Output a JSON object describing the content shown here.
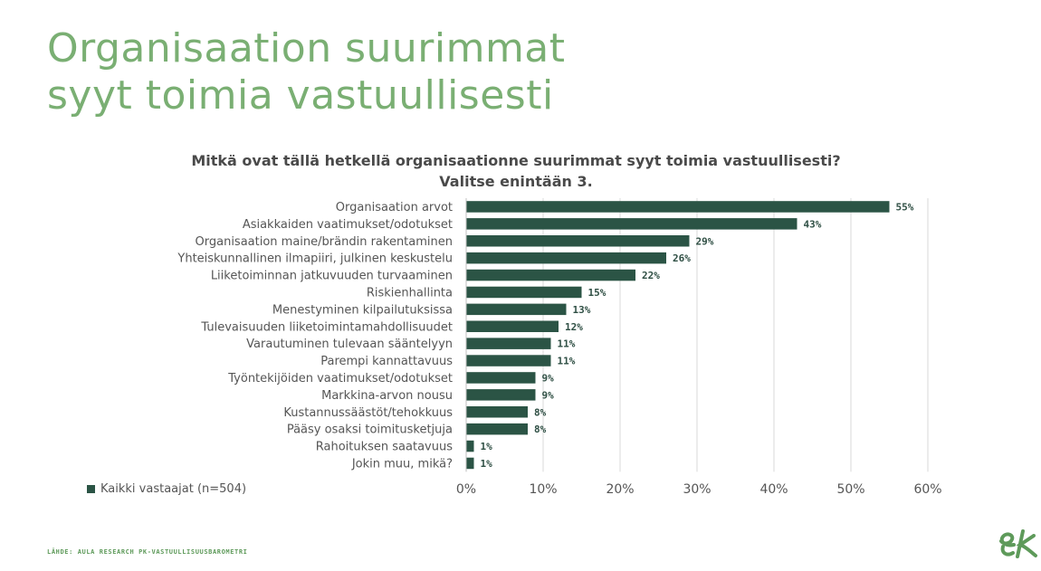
{
  "title_lines": [
    "Organisaation suurimmat",
    "syyt toimia vastuullisesti"
  ],
  "subtitle_lines": [
    "Mitkä ovat tällä hetkellä organisaationne suurimmat syyt toimia vastuullisesti?",
    "Valitse enintään 3."
  ],
  "legend_label": "Kaikki vastaajat (n=504)",
  "source": "LÄHDE: AULA RESEARCH PK-VASTUULLISUUSBAROMETRI",
  "logo_text": "ek",
  "colors": {
    "title": "#7aaf73",
    "bar": "#2b5445",
    "label": "#2f4f44",
    "grid": "#d9d9d9",
    "logo": "#5e9a5a"
  },
  "chart_data": {
    "type": "bar",
    "orientation": "horizontal",
    "categories": [
      "Organisaation arvot",
      "Asiakkaiden vaatimukset/odotukset",
      "Organisaation maine/brändin rakentaminen",
      "Yhteiskunnallinen ilmapiiri, julkinen keskustelu",
      "Liiketoiminnan jatkuvuuden turvaaminen",
      "Riskienhallinta",
      "Menestyminen kilpailutuksissa",
      "Tulevaisuuden liiketoimintamahdollisuudet",
      "Varautuminen tulevaan sääntelyyn",
      "Parempi kannattavuus",
      "Työntekijöiden vaatimukset/odotukset",
      "Markkina-arvon nousu",
      "Kustannussäästöt/tehokkuus",
      "Pääsy osaksi toimitusketjuja",
      "Rahoituksen saatavuus",
      "Jokin muu, mikä?"
    ],
    "series": [
      {
        "name": "Kaikki vastaajat (n=504)",
        "values": [
          55,
          43,
          29,
          26,
          22,
          15,
          13,
          12,
          11,
          11,
          9,
          9,
          8,
          8,
          1,
          1
        ],
        "labels": [
          "55%",
          "43%",
          "29%",
          "26%",
          "22%",
          "15%",
          "13%",
          "12%",
          "11%",
          "11%",
          "9%",
          "9%",
          "8%",
          "8%",
          "1%",
          "1%"
        ]
      }
    ],
    "xlim": [
      0,
      60
    ],
    "xticks": [
      "0%",
      "10%",
      "20%",
      "30%",
      "40%",
      "50%",
      "60%"
    ],
    "grid": true,
    "legend_position": "bottom-left"
  }
}
